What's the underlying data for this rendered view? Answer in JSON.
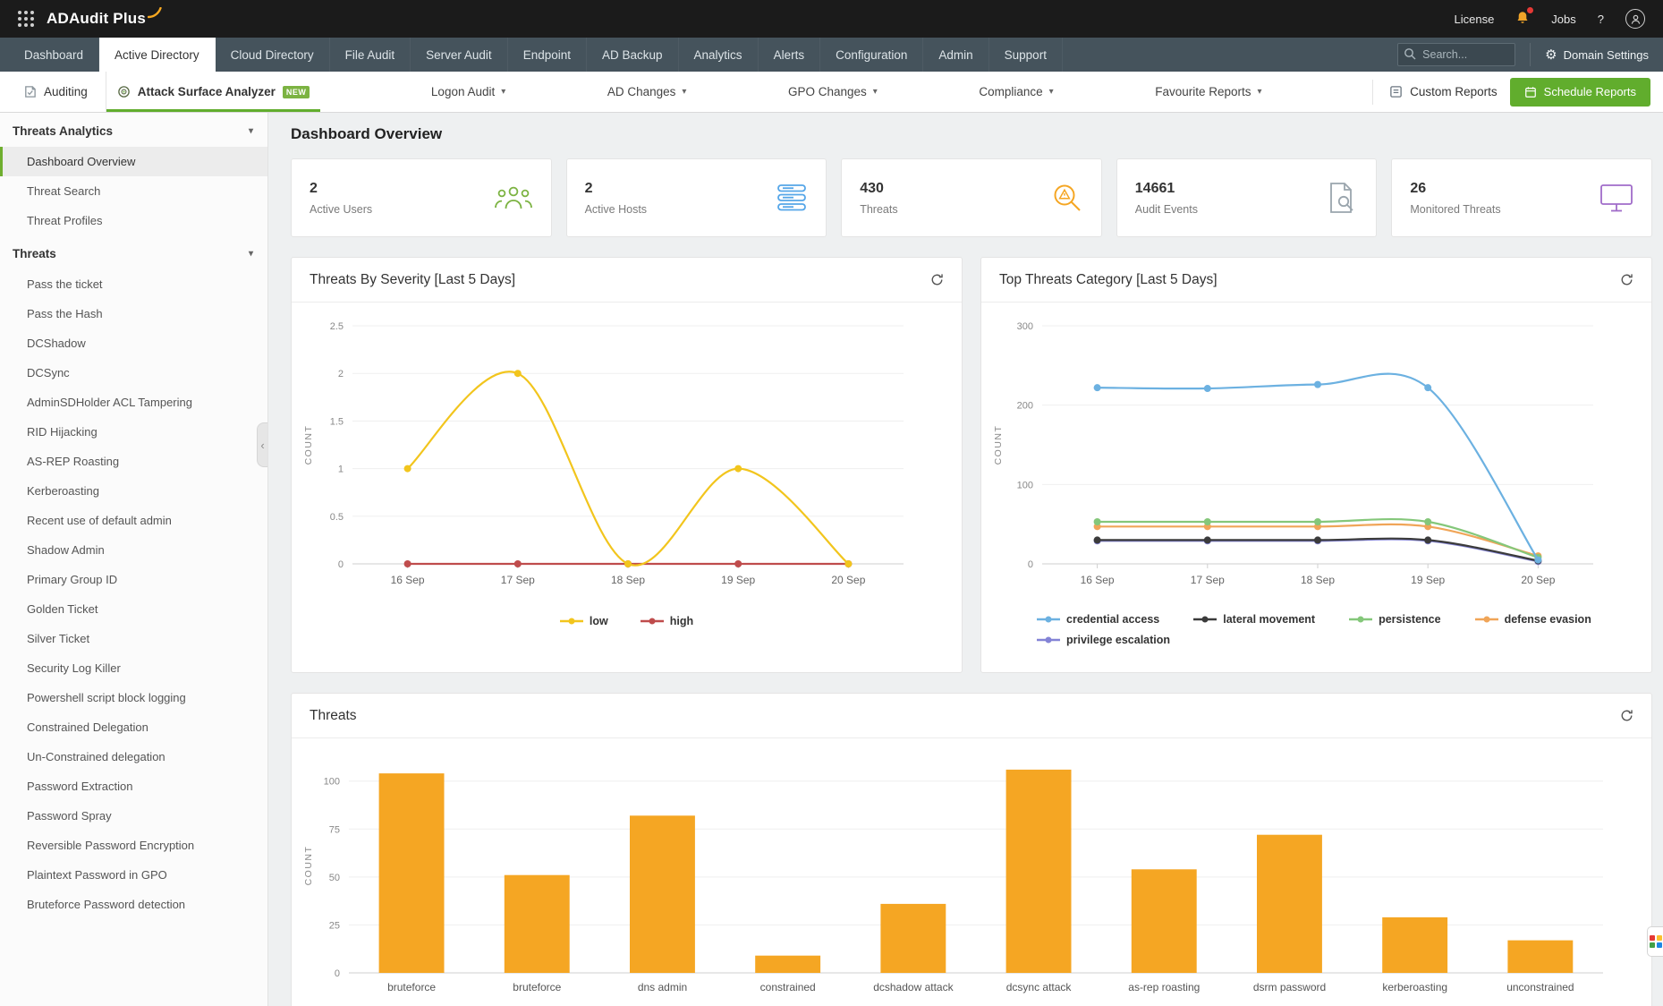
{
  "topbar": {
    "brand": "ADAudit Plus",
    "license_label": "License",
    "jobs_label": "Jobs",
    "help_label": "?"
  },
  "nav": {
    "tabs": [
      {
        "label": "Dashboard"
      },
      {
        "label": "Active Directory",
        "active": true
      },
      {
        "label": "Cloud Directory"
      },
      {
        "label": "File Audit"
      },
      {
        "label": "Server Audit"
      },
      {
        "label": "Endpoint"
      },
      {
        "label": "AD Backup"
      },
      {
        "label": "Analytics"
      },
      {
        "label": "Alerts"
      },
      {
        "label": "Configuration"
      },
      {
        "label": "Admin"
      },
      {
        "label": "Support"
      }
    ],
    "search_placeholder": "Search...",
    "domain_settings_label": "Domain Settings"
  },
  "subnav": {
    "auditing_label": "Auditing",
    "attack_surface_label": "Attack Surface Analyzer",
    "new_badge": "NEW",
    "menus": [
      "Logon Audit",
      "AD Changes",
      "GPO Changes",
      "Compliance",
      "Favourite Reports"
    ],
    "custom_reports_label": "Custom Reports",
    "schedule_reports_label": "Schedule Reports"
  },
  "sidebar": {
    "sections": [
      {
        "title": "Threats Analytics",
        "selected": "Dashboard Overview",
        "items": [
          "Dashboard Overview",
          "Threat Search",
          "Threat Profiles"
        ]
      },
      {
        "title": "Threats",
        "items": [
          "Pass the ticket",
          "Pass the Hash",
          "DCShadow",
          "DCSync",
          "AdminSDHolder ACL Tampering",
          "RID Hijacking",
          "AS-REP Roasting",
          "Kerberoasting",
          "Recent use of default admin",
          "Shadow Admin",
          "Primary Group ID",
          "Golden Ticket",
          "Silver Ticket",
          "Security Log Killer",
          "Powershell script block logging",
          "Constrained Delegation",
          "Un-Constrained delegation",
          "Password Extraction",
          "Password Spray",
          "Reversible Password Encryption",
          "Plaintext Password in GPO",
          "Bruteforce Password detection"
        ]
      }
    ]
  },
  "main": {
    "title": "Dashboard Overview",
    "stats": [
      {
        "value": "2",
        "label": "Active Users",
        "accent": "#7cb342"
      },
      {
        "value": "2",
        "label": "Active Hosts",
        "accent": "#55a6e8"
      },
      {
        "value": "430",
        "label": "Threats",
        "accent": "#f5a623"
      },
      {
        "value": "14661",
        "label": "Audit Events",
        "accent": "#9aa5ad"
      },
      {
        "value": "26",
        "label": "Monitored Threats",
        "accent": "#a06cc9"
      }
    ]
  },
  "chart_data": [
    {
      "type": "line",
      "title": "Threats By Severity [Last 5 Days]",
      "x": [
        "16 Sep",
        "17 Sep",
        "18 Sep",
        "19 Sep",
        "20 Sep"
      ],
      "series": [
        {
          "name": "low",
          "color": "#f2c51d",
          "values": [
            1,
            2,
            0,
            1,
            0
          ]
        },
        {
          "name": "high",
          "color": "#bf4c4c",
          "values": [
            0,
            0,
            0,
            0,
            0
          ]
        }
      ],
      "ylabel": "COUNT",
      "ylim": [
        0,
        2.5
      ],
      "yticks": [
        0,
        0.5,
        1,
        1.5,
        2,
        2.5
      ],
      "grid": true,
      "legend_position": "bottom-center"
    },
    {
      "type": "line",
      "title": "Top Threats Category [Last 5 Days]",
      "x": [
        "16 Sep",
        "17 Sep",
        "18 Sep",
        "19 Sep",
        "20 Sep"
      ],
      "series": [
        {
          "name": "credential access",
          "color": "#6cb1e1",
          "values": [
            222,
            221,
            226,
            222,
            5
          ]
        },
        {
          "name": "lateral movement",
          "color": "#3b3b3b",
          "values": [
            30,
            30,
            30,
            30,
            4
          ]
        },
        {
          "name": "persistence",
          "color": "#84c77a",
          "values": [
            53,
            53,
            53,
            53,
            8
          ]
        },
        {
          "name": "defense evasion",
          "color": "#f0a558",
          "values": [
            47,
            47,
            47,
            47,
            10
          ]
        },
        {
          "name": "privilege escalation",
          "color": "#8383d6",
          "values": [
            29,
            29,
            29,
            29,
            3
          ]
        }
      ],
      "ylabel": "COUNT",
      "ylim": [
        0,
        300
      ],
      "yticks": [
        0,
        100,
        200,
        300
      ],
      "grid": true,
      "legend_position": "bottom-left"
    },
    {
      "type": "bar",
      "title": "Threats",
      "categories": [
        "bruteforce",
        "bruteforce",
        "dns admin",
        "constrained",
        "dcshadow attack",
        "dcsync attack",
        "as-rep roasting",
        "dsrm password",
        "kerberoasting",
        "unconstrained"
      ],
      "values": [
        104,
        51,
        82,
        9,
        36,
        106,
        54,
        72,
        29,
        17
      ],
      "bar_color": "#f5a623",
      "ylabel": "COUNT",
      "ylim": [
        0,
        112
      ],
      "yticks": [
        0,
        25,
        50,
        75,
        100
      ],
      "grid": true
    }
  ]
}
